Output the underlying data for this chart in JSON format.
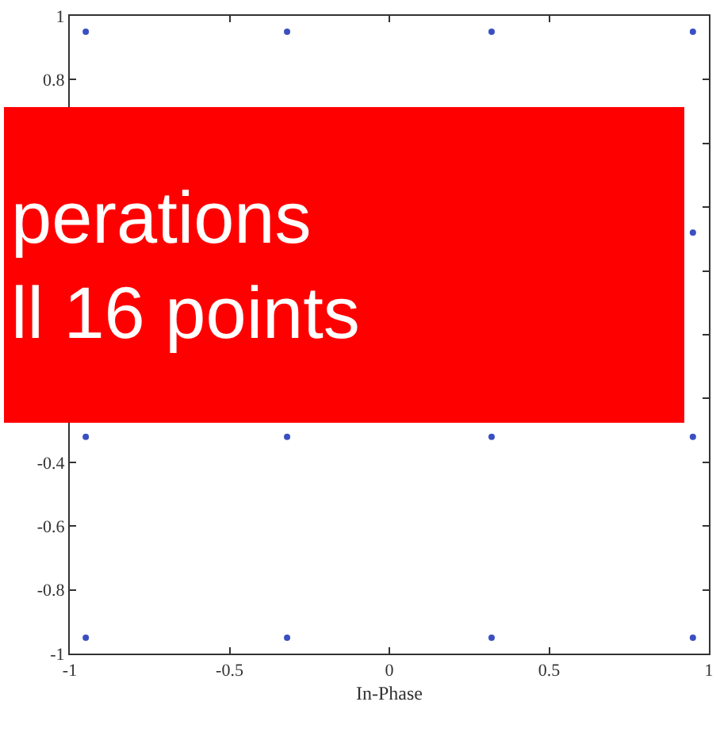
{
  "chart_data": {
    "type": "scatter",
    "xlabel": "In-Phase",
    "x": [
      -0.95,
      -0.32,
      0.32,
      0.95,
      0.95,
      -0.95,
      -0.32,
      0.32,
      0.95,
      -0.95,
      -0.32,
      0.32,
      0.95
    ],
    "series": [
      {
        "color": "#3a4fc0",
        "values": [
          0.95,
          0.95,
          0.95,
          0.95,
          0.32,
          -0.32,
          -0.32,
          -0.32,
          -0.32,
          -0.95,
          -0.95,
          -0.95,
          -0.95
        ]
      }
    ],
    "xlim": [
      -1,
      1
    ],
    "xticks": [
      -1,
      -0.5,
      0,
      0.5,
      1
    ],
    "ylim": [
      -1,
      1
    ],
    "yticks": [
      -1,
      -0.8,
      -0.6,
      -0.4,
      {
        "value": -0.2,
        "label": null
      },
      {
        "value": 0,
        "label": null
      },
      {
        "value": 0.2,
        "label": null
      },
      {
        "value": 0.4,
        "label": null
      },
      {
        "value": 0.6,
        "label": null
      },
      0.8,
      1
    ],
    "annotations": [
      "perations\nll 16 points"
    ],
    "marker": "circle"
  }
}
